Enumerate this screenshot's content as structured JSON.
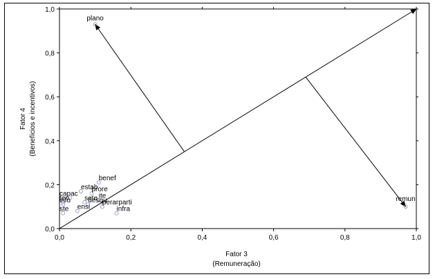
{
  "chart_data": {
    "type": "scatter",
    "xlabel": "Fator 3",
    "xlabel_sub": "(Remuneração)",
    "ylabel": "Fator 4",
    "ylabel_sub": "(Benefícios e incentivos)",
    "xlim": [
      0,
      1
    ],
    "ylim": [
      0,
      1
    ],
    "xticks": [
      "0,0",
      "0,2",
      "0,4",
      "0,6",
      "0,8",
      "1,0"
    ],
    "yticks": [
      "0,0",
      "0,2",
      "0,4",
      "0,6",
      "0,8",
      "1,0"
    ],
    "xtick_values": [
      0,
      0.2,
      0.4,
      0.6,
      0.8,
      1.0
    ],
    "ytick_values": [
      0,
      0.2,
      0.4,
      0.6,
      0.8,
      1.0
    ],
    "grid": false,
    "points": [
      {
        "label": "plano",
        "x": 0.1,
        "y": 0.93
      },
      {
        "label": "remun",
        "x": 0.97,
        "y": 0.1
      },
      {
        "label": "benef",
        "x": 0.11,
        "y": 0.21
      },
      {
        "label": "estab",
        "x": 0.06,
        "y": 0.17
      },
      {
        "label": "prore",
        "x": 0.09,
        "y": 0.16
      },
      {
        "label": "capac",
        "x": 0.03,
        "y": 0.14
      },
      {
        "label": "ite",
        "x": 0.11,
        "y": 0.13
      },
      {
        "label": "sete",
        "x": 0.07,
        "y": 0.12
      },
      {
        "label": "ten",
        "x": 0.01,
        "y": 0.12
      },
      {
        "label": "desqu",
        "x": 0.08,
        "y": 0.11
      },
      {
        "label": "infu",
        "x": 0.01,
        "y": 0.11
      },
      {
        "label": "perarparti",
        "x": 0.12,
        "y": 0.1
      },
      {
        "label": "ensi",
        "x": 0.05,
        "y": 0.08
      },
      {
        "label": "ste",
        "x": 0.01,
        "y": 0.07
      },
      {
        "label": "infra",
        "x": 0.16,
        "y": 0.07
      }
    ],
    "vectors": [
      {
        "from": [
          0,
          0
        ],
        "to": [
          1.0,
          1.0
        ]
      },
      {
        "from": [
          0.35,
          0.35
        ],
        "to": [
          0.1,
          0.93
        ]
      },
      {
        "from": [
          0.69,
          0.69
        ],
        "to": [
          0.97,
          0.1
        ]
      }
    ]
  }
}
